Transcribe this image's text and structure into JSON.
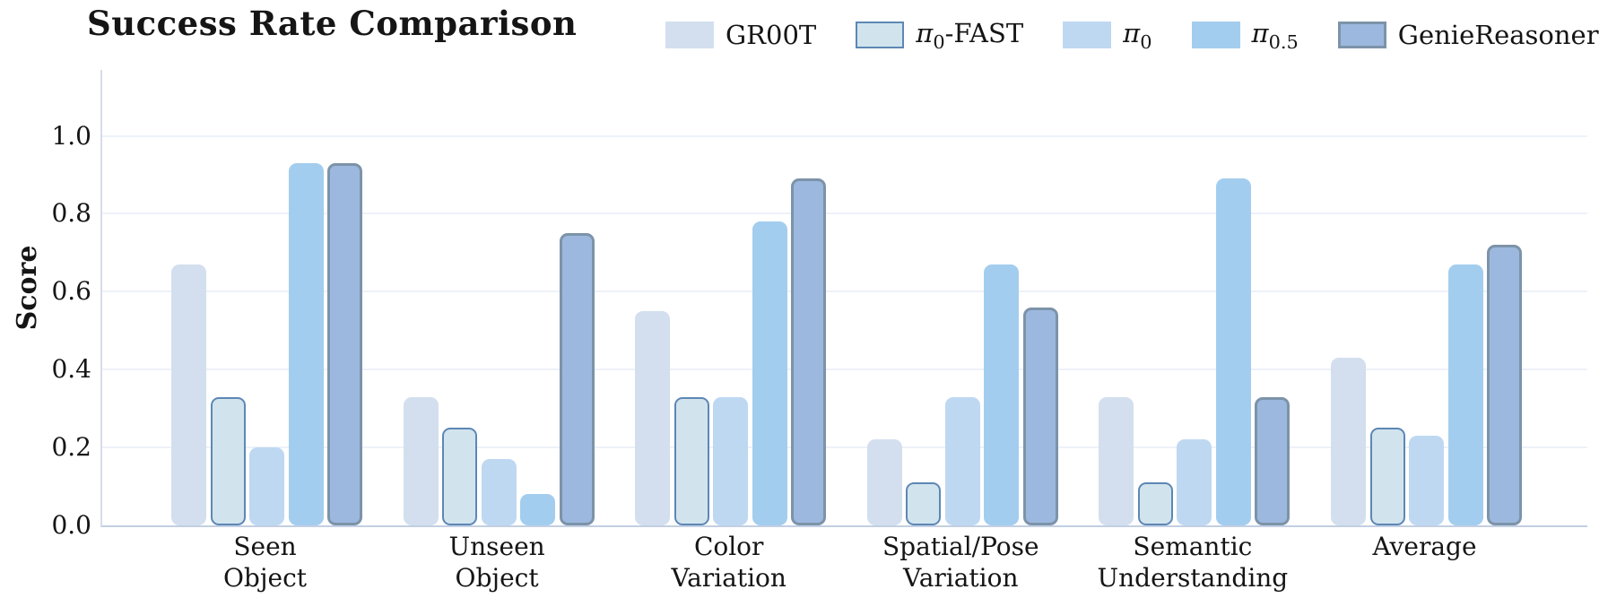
{
  "chart_data": {
    "type": "bar",
    "title": "Success Rate Comparison",
    "ylabel": "Score",
    "ylim": [
      0,
      1.17
    ],
    "y_ticks": [
      0.0,
      0.2,
      0.4,
      0.6,
      0.8,
      1.0
    ],
    "y_tick_labels": [
      "0.0",
      "0.2",
      "0.4",
      "0.6",
      "0.8",
      "1.0"
    ],
    "grid": "horizontal-major",
    "legend_position": "top",
    "categories": [
      "Seen\nObject",
      "Unseen\nObject",
      "Color\nVariation",
      "Spatial/Pose\nVariation",
      "Semantic\nUnderstanding",
      "Average"
    ],
    "series": [
      {
        "name": "GR00T",
        "label_pre": "GR00T",
        "label_sub": "",
        "label_post": "",
        "math": false,
        "fill": "#d3dfee",
        "edge": null,
        "edge_width": 0,
        "values": [
          0.67,
          0.33,
          0.55,
          0.22,
          0.33,
          0.43
        ]
      },
      {
        "name": "π0-FAST",
        "label_pre": "π",
        "label_sub": "0",
        "label_post": "-FAST",
        "math": true,
        "fill": "#d1e4ee",
        "edge": "#5d87b4",
        "edge_width": 2,
        "values": [
          0.33,
          0.25,
          0.33,
          0.11,
          0.11,
          0.25
        ]
      },
      {
        "name": "π0",
        "label_pre": "π",
        "label_sub": "0",
        "label_post": "",
        "math": true,
        "fill": "#bfd8f2",
        "edge": null,
        "edge_width": 0,
        "values": [
          0.2,
          0.17,
          0.33,
          0.33,
          0.22,
          0.23
        ]
      },
      {
        "name": "π0.5",
        "label_pre": "π",
        "label_sub": "0.5",
        "label_post": "",
        "math": true,
        "fill": "#a3cdee",
        "edge": null,
        "edge_width": 0,
        "values": [
          0.93,
          0.08,
          0.78,
          0.67,
          0.89,
          0.67
        ]
      },
      {
        "name": "GenieReasoner",
        "label_pre": "GenieReasoner",
        "label_sub": "",
        "label_post": "",
        "math": false,
        "fill": "#9cb8de",
        "edge": "#7c93a9",
        "edge_width": 3.5,
        "values": [
          0.93,
          0.75,
          0.89,
          0.56,
          0.33,
          0.72
        ]
      }
    ]
  }
}
